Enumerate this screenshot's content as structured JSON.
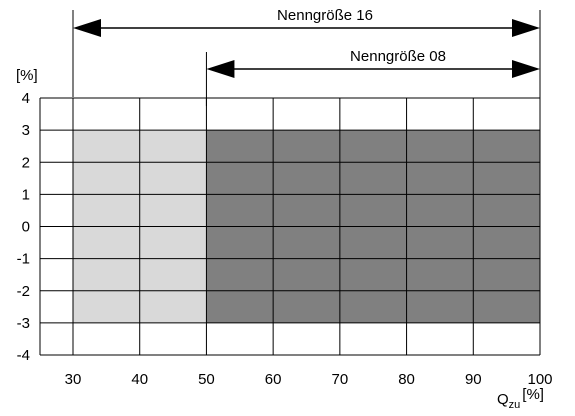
{
  "chart_data": {
    "type": "heatmap",
    "y_unit_label": "[%]",
    "x_label_main": "Q",
    "x_label_sub": "zu",
    "x_label_unit": "[%]",
    "x_ticks": [
      30,
      40,
      50,
      60,
      70,
      80,
      90,
      100
    ],
    "y_ticks": [
      4,
      3,
      2,
      1,
      0,
      -1,
      -2,
      -3,
      -4
    ],
    "xlim": [
      30,
      100
    ],
    "ylim": [
      -4,
      4
    ],
    "grid": true,
    "regions": [
      {
        "x_range": [
          30,
          50
        ],
        "y_range": [
          -3,
          3
        ],
        "color": "#d9d9d9"
      },
      {
        "x_range": [
          50,
          100
        ],
        "y_range": [
          -3,
          3
        ],
        "color": "#808080"
      }
    ],
    "ranges": [
      {
        "label": "Nenngröße 16",
        "x_range": [
          30,
          100
        ]
      },
      {
        "label": "Nenngröße 08",
        "x_range": [
          50,
          100
        ]
      }
    ]
  }
}
